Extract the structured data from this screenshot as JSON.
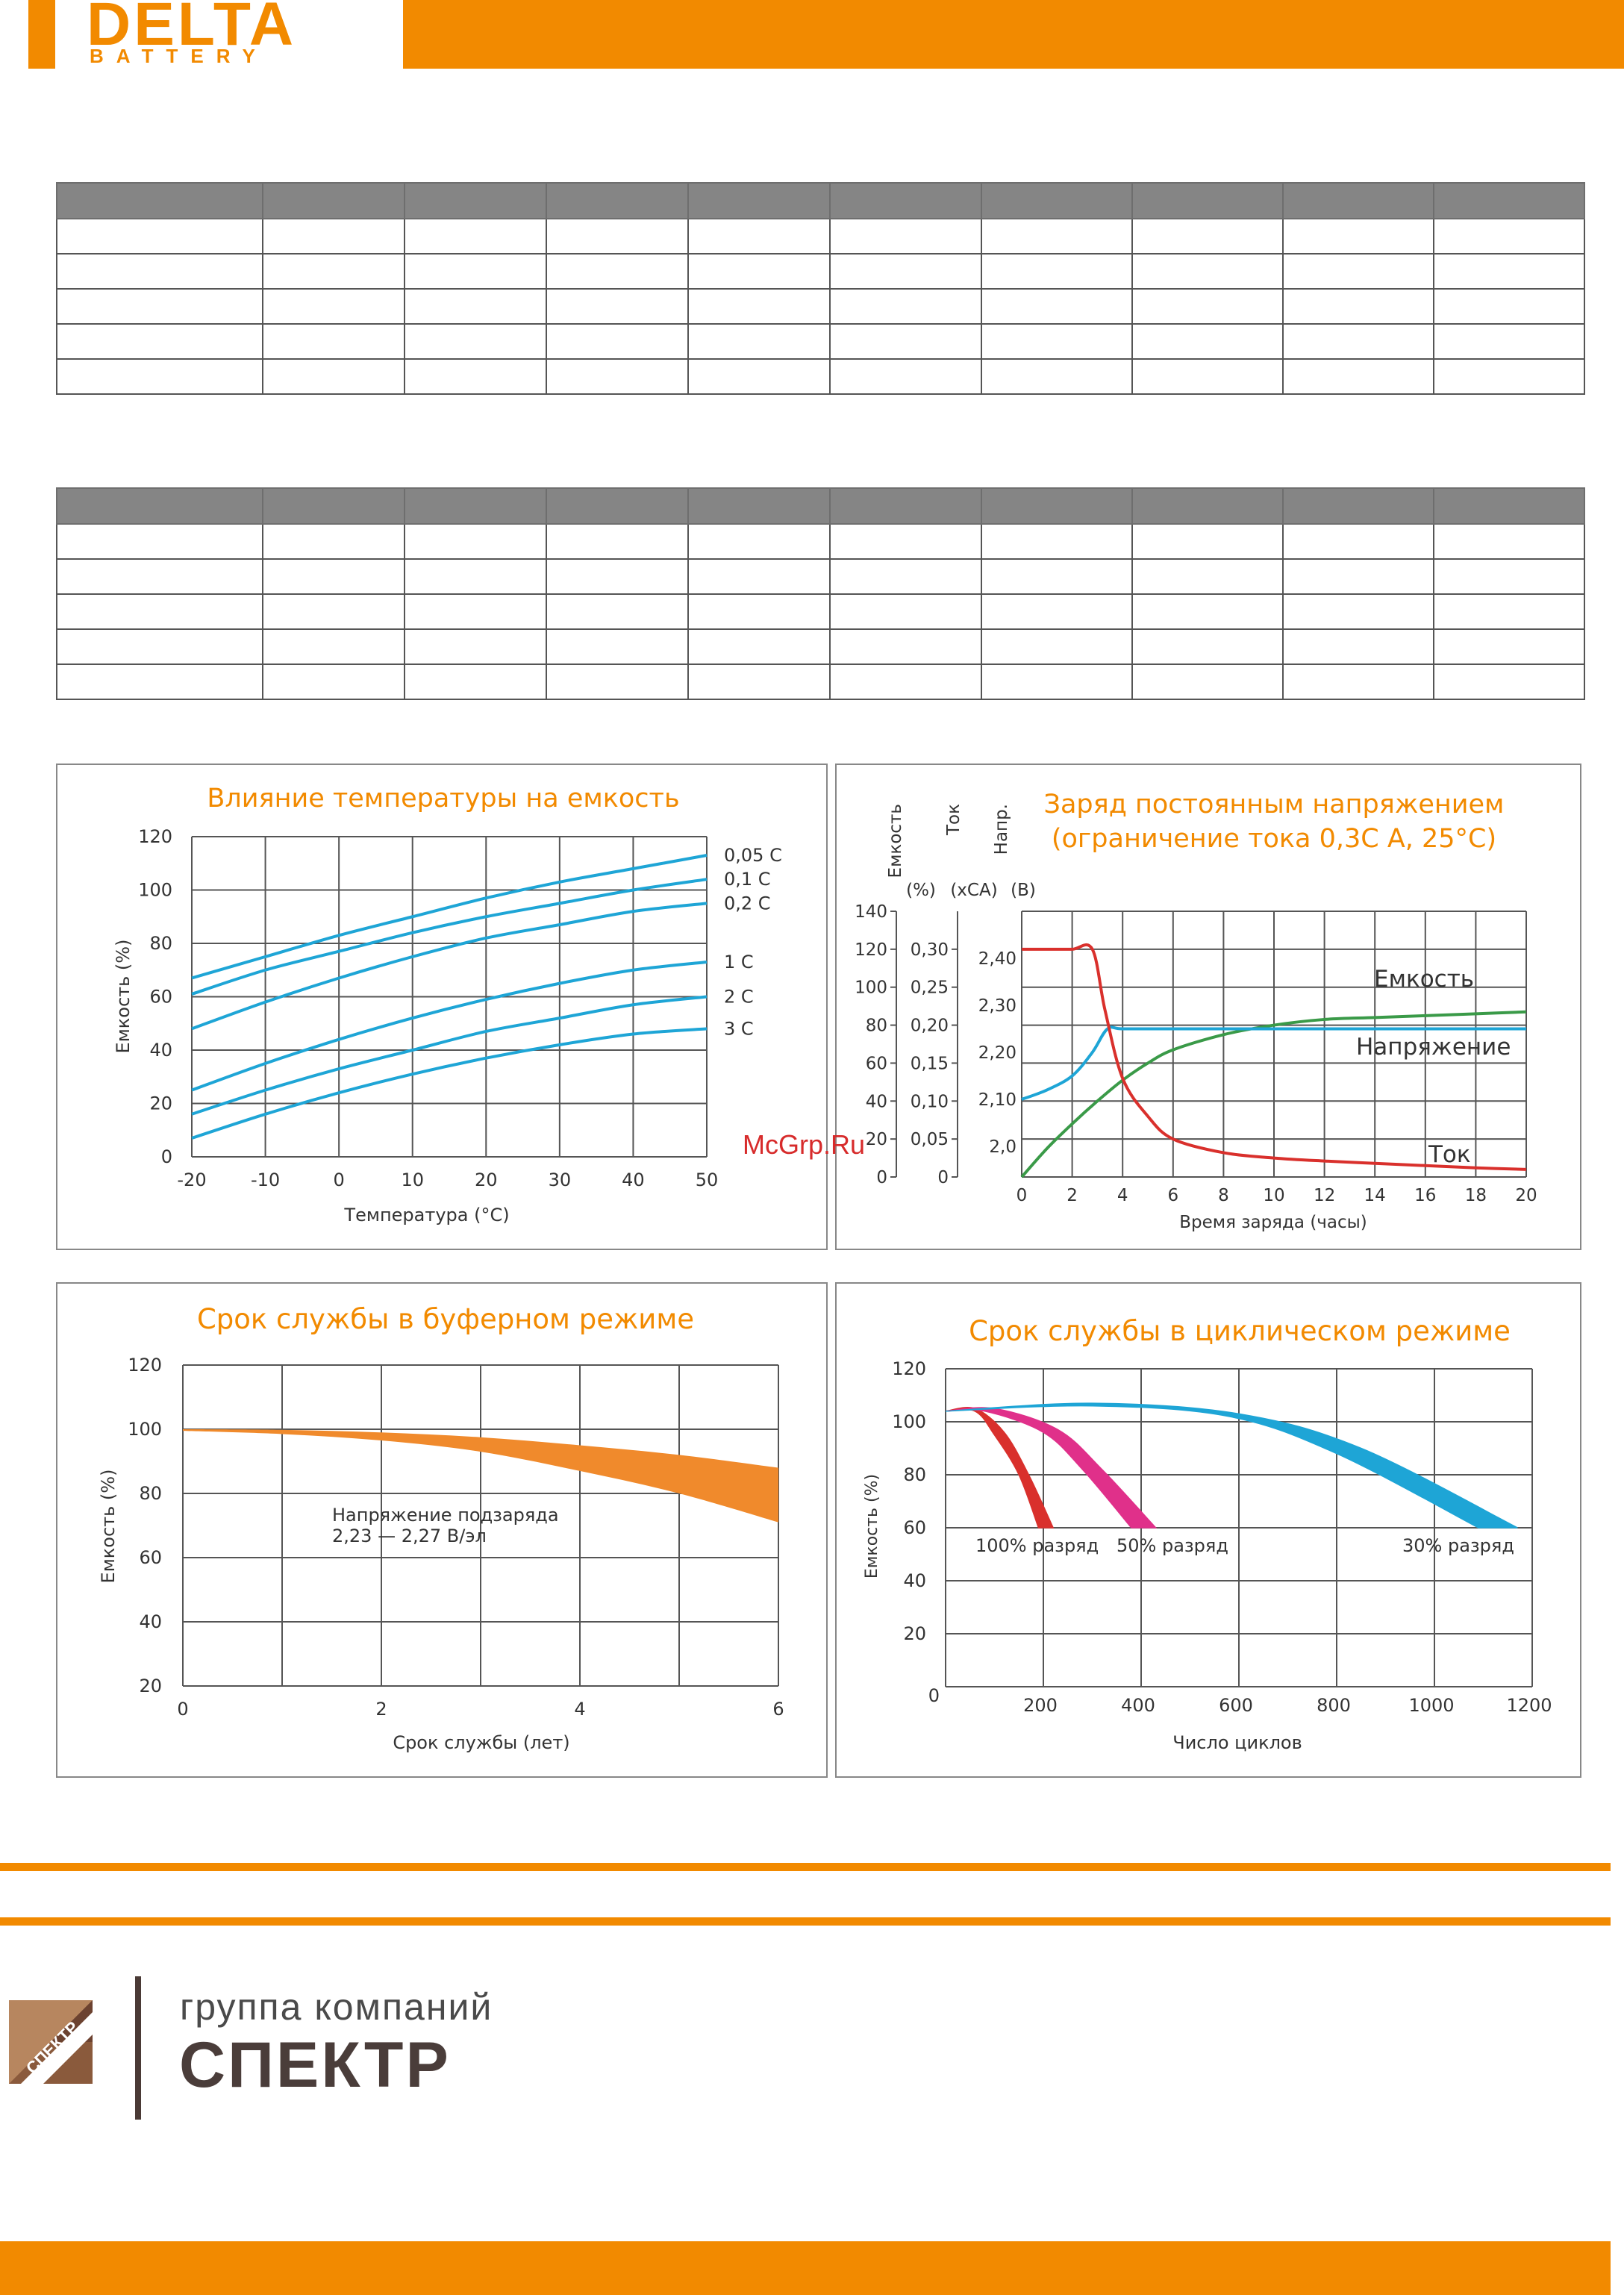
{
  "brand": {
    "name": "DELTA",
    "sub": "BATTERY"
  },
  "tables": {
    "columns": 10,
    "rows": 5
  },
  "watermark": "McGrp.Ru",
  "footer": {
    "group_caption": "группа компаний",
    "group_name": "СПЕКТР",
    "logo_text": "СПЕКТР"
  },
  "colors": {
    "accent": "#f28a00",
    "blue": "#1ea5d6",
    "red": "#d9302c",
    "green": "#3a9a48",
    "magenta": "#e0308a"
  },
  "chart_data": [
    {
      "type": "line",
      "title": "Влияние температуры на емкость",
      "xlabel": "Температура (°С)",
      "ylabel": "Емкость (%)",
      "xlim": [
        -20,
        50
      ],
      "ylim": [
        0,
        120
      ],
      "xticks": [
        "-20",
        "-10",
        "0",
        "10",
        "20",
        "30",
        "40",
        "50"
      ],
      "yticks": [
        "0",
        "20",
        "40",
        "60",
        "80",
        "100",
        "120"
      ],
      "series": [
        {
          "name": "0,05 С",
          "x": [
            -20,
            -10,
            0,
            10,
            20,
            30,
            40,
            50
          ],
          "y": [
            67,
            75,
            83,
            90,
            97,
            103,
            108,
            113
          ]
        },
        {
          "name": "0,1 С",
          "x": [
            -20,
            -10,
            0,
            10,
            20,
            30,
            40,
            50
          ],
          "y": [
            61,
            70,
            77,
            84,
            90,
            95,
            100,
            104
          ]
        },
        {
          "name": "0,2 С",
          "x": [
            -20,
            -10,
            0,
            10,
            20,
            30,
            40,
            50
          ],
          "y": [
            48,
            58,
            67,
            75,
            82,
            87,
            92,
            95
          ]
        },
        {
          "name": "1 С",
          "x": [
            -20,
            -10,
            0,
            10,
            20,
            30,
            40,
            50
          ],
          "y": [
            25,
            35,
            44,
            52,
            59,
            65,
            70,
            73
          ]
        },
        {
          "name": "2 С",
          "x": [
            -20,
            -10,
            0,
            10,
            20,
            30,
            40,
            50
          ],
          "y": [
            16,
            25,
            33,
            40,
            47,
            52,
            57,
            60
          ]
        },
        {
          "name": "3 С",
          "x": [
            -20,
            -10,
            0,
            10,
            20,
            30,
            40,
            50
          ],
          "y": [
            7,
            16,
            24,
            31,
            37,
            42,
            46,
            48
          ]
        }
      ]
    },
    {
      "type": "line",
      "title": "Заряд постоянным напряжением",
      "subtitle": "(ограничение тока 0,3С А, 25°С)",
      "xlabel": "Время заряда (часы)",
      "axis_labels": [
        {
          "name": "Емкость",
          "unit": "(%)"
        },
        {
          "name": "Ток",
          "unit": "(хСА)"
        },
        {
          "name": "Напр.",
          "unit": "(В)"
        }
      ],
      "xlim": [
        0,
        20
      ],
      "xticks": [
        "0",
        "2",
        "4",
        "6",
        "8",
        "10",
        "12",
        "14",
        "16",
        "18",
        "20"
      ],
      "yticks_capacity": [
        "0",
        "20",
        "40",
        "60",
        "80",
        "100",
        "120",
        "140"
      ],
      "yticks_current": [
        "0",
        "0,05",
        "0,10",
        "0,15",
        "0,20",
        "0,25",
        "0,30"
      ],
      "yticks_voltage": [
        "2,0",
        "2,10",
        "2,20",
        "2,30",
        "2,40"
      ],
      "series": [
        {
          "name": "Емкость",
          "x": [
            0,
            1,
            2,
            3,
            4,
            5,
            6,
            8,
            10,
            12,
            14,
            16,
            18,
            20
          ],
          "y": [
            0,
            15,
            28,
            40,
            51,
            60,
            67,
            75,
            80,
            83,
            84,
            85,
            86,
            87
          ]
        },
        {
          "name": "Напряжение",
          "x": [
            0,
            1,
            2,
            2.8,
            3.4,
            4,
            6,
            10,
            14,
            20
          ],
          "y": [
            2.1,
            2.12,
            2.15,
            2.2,
            2.25,
            2.25,
            2.25,
            2.25,
            2.25,
            2.25
          ]
        },
        {
          "name": "Ток",
          "x": [
            0,
            1,
            2,
            2.8,
            3.3,
            4,
            5,
            6,
            8,
            10,
            12,
            14,
            16,
            18,
            20
          ],
          "y": [
            0.3,
            0.3,
            0.3,
            0.3,
            0.22,
            0.13,
            0.08,
            0.05,
            0.032,
            0.025,
            0.021,
            0.018,
            0.015,
            0.012,
            0.01
          ]
        }
      ]
    },
    {
      "type": "area",
      "title": "Срок службы в буферном режиме",
      "xlabel": "Срок службы (лет)",
      "ylabel": "Емкость (%)",
      "xlim": [
        0,
        6
      ],
      "ylim": [
        20,
        120
      ],
      "xticks": [
        "0",
        "2",
        "4",
        "6"
      ],
      "yticks": [
        "20",
        "40",
        "60",
        "80",
        "100",
        "120"
      ],
      "annotation": [
        "Напряжение подзаряда",
        "2,23 — 2,27 В/эл"
      ],
      "series": [
        {
          "name": "upper",
          "x": [
            0,
            1,
            2,
            3,
            4,
            5,
            6
          ],
          "y": [
            100,
            99.8,
            99,
            97.5,
            95,
            92,
            88
          ]
        },
        {
          "name": "lower",
          "x": [
            0,
            1,
            2,
            3,
            4,
            5,
            6
          ],
          "y": [
            99.5,
            98.5,
            96.5,
            93,
            87,
            80,
            71
          ]
        }
      ]
    },
    {
      "type": "area",
      "title": "Срок службы в циклическом режиме",
      "xlabel": "Число циклов",
      "ylabel": "Емкость (%)",
      "xlim": [
        0,
        1200
      ],
      "ylim": [
        0,
        120
      ],
      "xticks": [
        "0",
        "200",
        "400",
        "600",
        "800",
        "1000",
        "1200"
      ],
      "yticks": [
        "0",
        "20",
        "40",
        "60",
        "80",
        "100",
        "120"
      ],
      "series": [
        {
          "name": "100% разряд",
          "upper": [
            [
              0,
              104
            ],
            [
              60,
              105
            ],
            [
              120,
              96
            ],
            [
              170,
              80
            ],
            [
              220,
              60
            ]
          ],
          "lower": [
            [
              0,
              104
            ],
            [
              60,
              104
            ],
            [
              100,
              95
            ],
            [
              150,
              80
            ],
            [
              190,
              60
            ]
          ]
        },
        {
          "name": "50% разряд",
          "upper": [
            [
              0,
              104
            ],
            [
              100,
              105
            ],
            [
              230,
              97
            ],
            [
              320,
              82
            ],
            [
              430,
              60
            ]
          ],
          "lower": [
            [
              0,
              104
            ],
            [
              80,
              104
            ],
            [
              200,
              96
            ],
            [
              280,
              82
            ],
            [
              380,
              60
            ]
          ]
        },
        {
          "name": "30% разряд",
          "upper": [
            [
              0,
              104
            ],
            [
              300,
              107
            ],
            [
              600,
              103
            ],
            [
              850,
              90
            ],
            [
              1170,
              60
            ]
          ],
          "lower": [
            [
              0,
              104
            ],
            [
              300,
              106
            ],
            [
              580,
              102
            ],
            [
              800,
              88
            ],
            [
              1090,
              60
            ]
          ]
        }
      ]
    }
  ]
}
